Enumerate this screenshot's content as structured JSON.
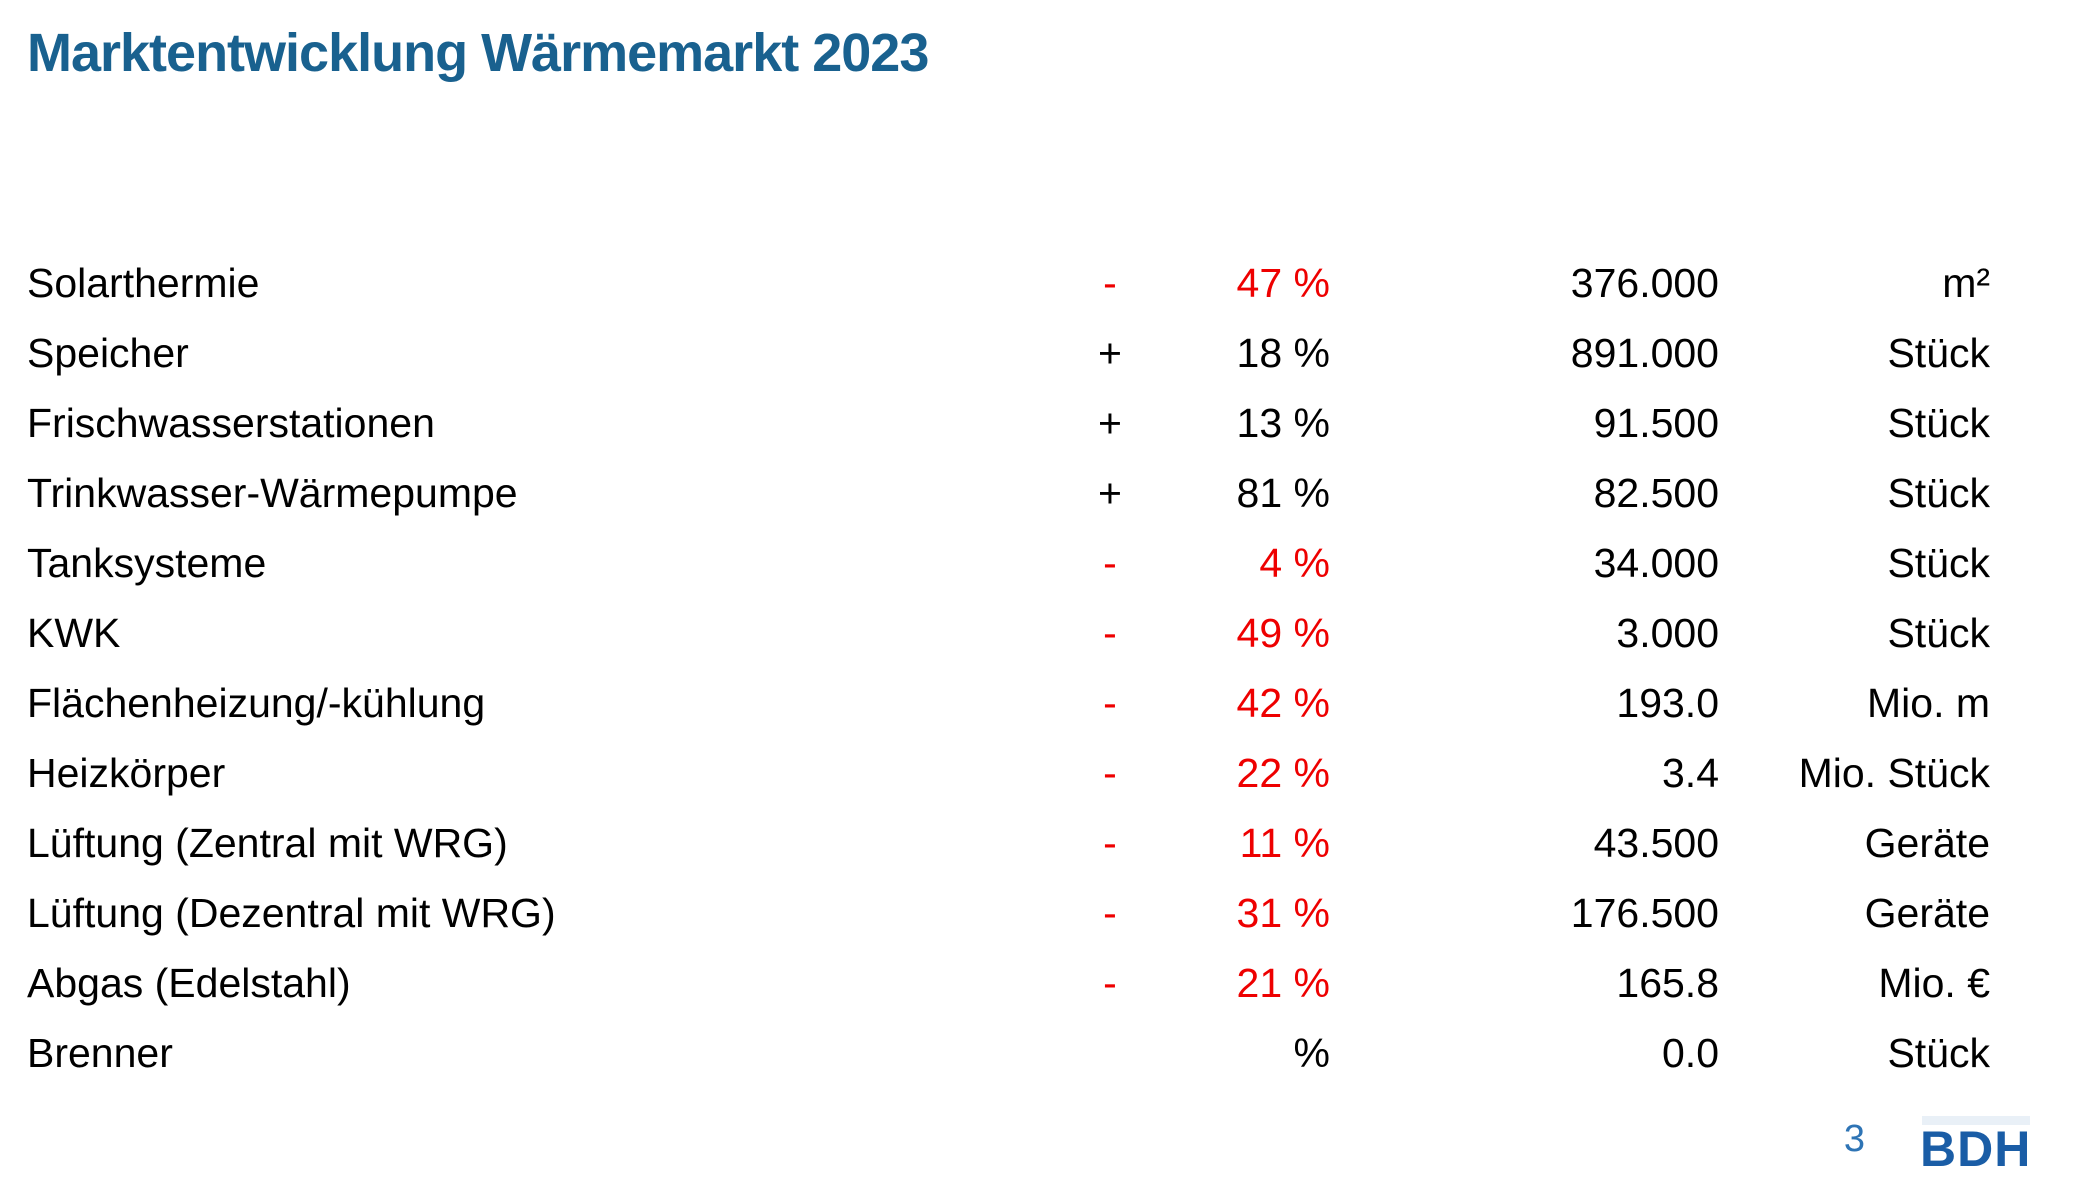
{
  "title": "Marktentwicklung Wärmemarkt 2023",
  "colors": {
    "title_blue": "#19618F",
    "negative_red": "#EE0000",
    "text_black": "#000000",
    "page_number_blue": "#2E74B5",
    "logo_blue": "#1A5DA6",
    "logo_bar_blue": "#E9F0F7"
  },
  "table": {
    "rows": [
      {
        "label": "Solarthermie",
        "sign": "-",
        "percent": "47 %",
        "value": "376.000",
        "unit": "m²",
        "negative": true
      },
      {
        "label": "Speicher",
        "sign": "+",
        "percent": "18 %",
        "value": "891.000",
        "unit": "Stück",
        "negative": false
      },
      {
        "label": "Frischwasserstationen",
        "sign": "+",
        "percent": "13 %",
        "value": "91.500",
        "unit": "Stück",
        "negative": false
      },
      {
        "label": "Trinkwasser-Wärmepumpe",
        "sign": "+",
        "percent": "81 %",
        "value": "82.500",
        "unit": "Stück",
        "negative": false
      },
      {
        "label": "Tanksysteme",
        "sign": "-",
        "percent": "4 %",
        "value": "34.000",
        "unit": "Stück",
        "negative": true
      },
      {
        "label": "KWK",
        "sign": "-",
        "percent": "49 %",
        "value": "3.000",
        "unit": "Stück",
        "negative": true
      },
      {
        "label": "Flächenheizung/-kühlung",
        "sign": "-",
        "percent": "42 %",
        "value": "193.0",
        "unit": "Mio. m",
        "negative": true
      },
      {
        "label": "Heizkörper",
        "sign": "-",
        "percent": "22 %",
        "value": "3.4",
        "unit": "Mio. Stück",
        "negative": true
      },
      {
        "label": "Lüftung (Zentral mit WRG)",
        "sign": "-",
        "percent": "11 %",
        "value": "43.500",
        "unit": "Geräte",
        "negative": true
      },
      {
        "label": "Lüftung (Dezentral mit WRG)",
        "sign": "-",
        "percent": "31 %",
        "value": "176.500",
        "unit": "Geräte",
        "negative": true
      },
      {
        "label": "Abgas (Edelstahl)",
        "sign": "-",
        "percent": "21 %",
        "value": "165.8",
        "unit": "Mio. €",
        "negative": true
      },
      {
        "label": "Brenner",
        "sign": "",
        "percent": "%",
        "value": "0.0",
        "unit": "Stück",
        "negative": false
      }
    ]
  },
  "footer": {
    "page_number": "3",
    "logo_text": "BDH"
  }
}
